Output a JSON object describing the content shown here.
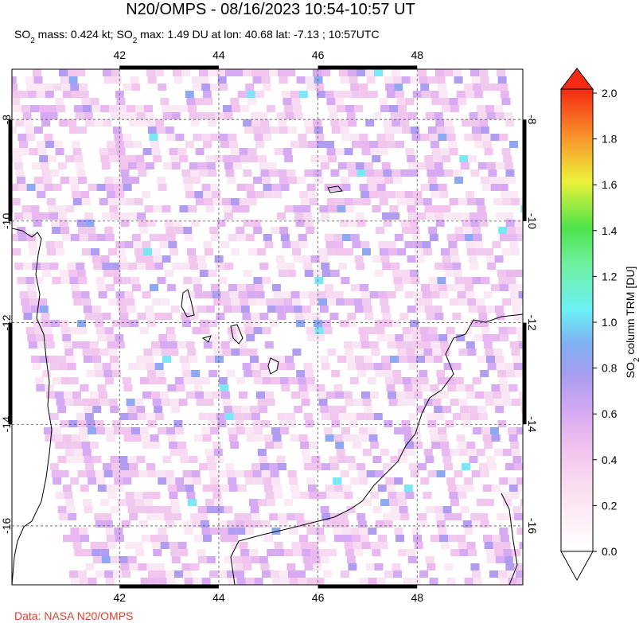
{
  "title": "N20/OMPS - 08/16/2023 10:54-10:57 UT",
  "subtitle": [
    "SO",
    "2",
    " mass: 0.424 kt; SO",
    "2",
    " max: 1.49 DU at lon: 40.68 lat: -7.13 ; 10:57UTC"
  ],
  "map": {
    "xlim": [
      39.83,
      50.13
    ],
    "ylim": [
      -17.16,
      -7.01
    ],
    "xticks": [
      42,
      44,
      46,
      48
    ],
    "yticks": [
      -8,
      -10,
      -12,
      -14,
      -16
    ]
  },
  "colorbar": {
    "label": [
      "SO",
      "2",
      " column TRM [DU]"
    ],
    "lim": [
      0,
      2
    ],
    "ticks": [
      {
        "value": 0,
        "label": "0.0"
      },
      {
        "value": 0.2,
        "label": "0.2"
      },
      {
        "value": 0.4,
        "label": "0.4"
      },
      {
        "value": 0.6,
        "label": "0.6"
      },
      {
        "value": 0.8,
        "label": "0.8"
      },
      {
        "value": 1,
        "label": "1.0"
      },
      {
        "value": 1.2,
        "label": "1.2"
      },
      {
        "value": 1.4,
        "label": "1.4"
      },
      {
        "value": 1.6,
        "label": "1.6"
      },
      {
        "value": 1.8,
        "label": "1.8"
      },
      {
        "value": 2,
        "label": "2.0"
      }
    ]
  },
  "credit": "Data: NASA N20/OMPS"
}
